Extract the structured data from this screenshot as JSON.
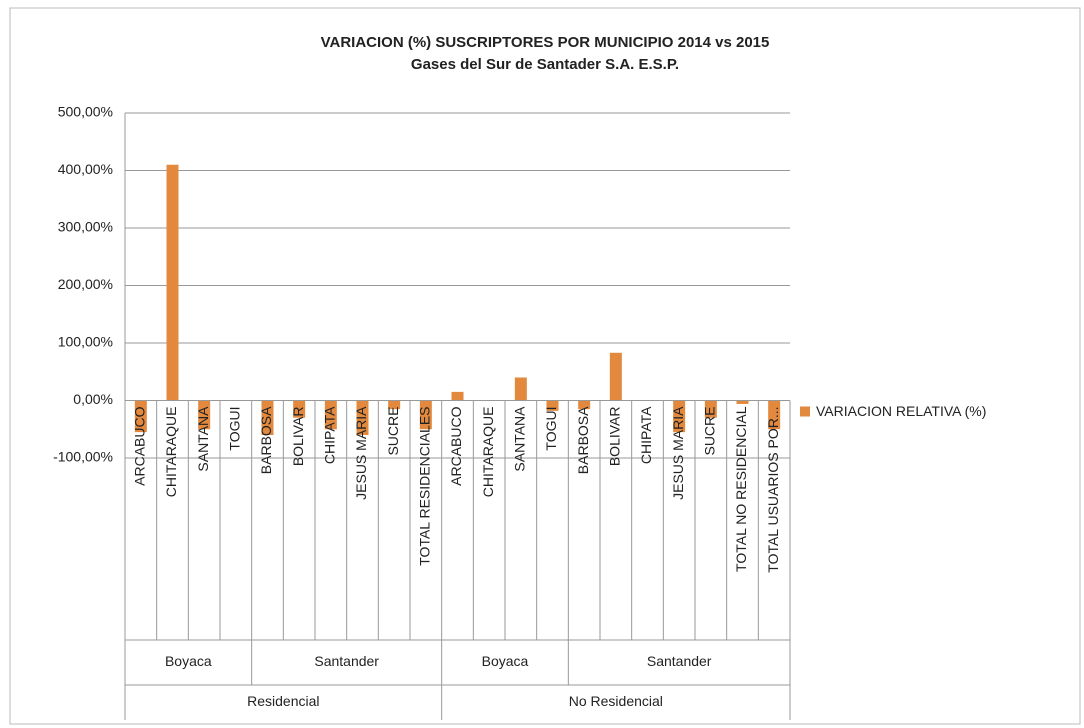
{
  "chart_data": {
    "type": "bar",
    "title": "VARIACION (%) SUSCRIPTORES POR MUNICIPIO 2014 vs 2015",
    "subtitle": "Gases del Sur de Santader S.A. E.S.P.",
    "category_groups": [
      {
        "name": "Residencial",
        "groups": [
          {
            "name": "Boyaca",
            "categories": [
              "ARCABUCO",
              "CHITARAQUE",
              "SANTANA",
              "TOGUI"
            ]
          },
          {
            "name": "Santander",
            "categories": [
              "BARBOSA",
              "BOLIVAR",
              "CHIPATA",
              "JESUS MARIA",
              "SUCRE",
              "TOTAL RESIDENCIALES"
            ]
          }
        ]
      },
      {
        "name": "No Residencial",
        "groups": [
          {
            "name": "Boyaca",
            "categories": [
              "ARCABUCO",
              "CHITARAQUE",
              "SANTANA",
              "TOGUI"
            ]
          },
          {
            "name": "Santander",
            "categories": [
              "BARBOSA",
              "BOLIVAR",
              "CHIPATA",
              "JESUS MARIA",
              "SUCRE",
              "TOTAL NO RESIDENCIAL",
              "TOTAL USUARIOS POR..."
            ]
          }
        ]
      }
    ],
    "series": [
      {
        "name": "VARIACION RELATIVA (%)",
        "color": "#e2893e",
        "values": [
          -55,
          410,
          -50,
          0,
          -60,
          -30,
          -50,
          -60,
          -15,
          -50,
          15,
          0,
          40,
          -18,
          -15,
          83,
          0,
          -55,
          -30,
          -6,
          -50
        ]
      }
    ],
    "ylim": [
      -100,
      500
    ],
    "yticks": [
      {
        "value": -100,
        "label": "-100,00%"
      },
      {
        "value": 0,
        "label": "0,00%"
      },
      {
        "value": 100,
        "label": "100,00%"
      },
      {
        "value": 200,
        "label": "200,00%"
      },
      {
        "value": 300,
        "label": "300,00%"
      },
      {
        "value": 400,
        "label": "400,00%"
      },
      {
        "value": 500,
        "label": "500,00%"
      }
    ],
    "grid": true,
    "legend": "right"
  }
}
